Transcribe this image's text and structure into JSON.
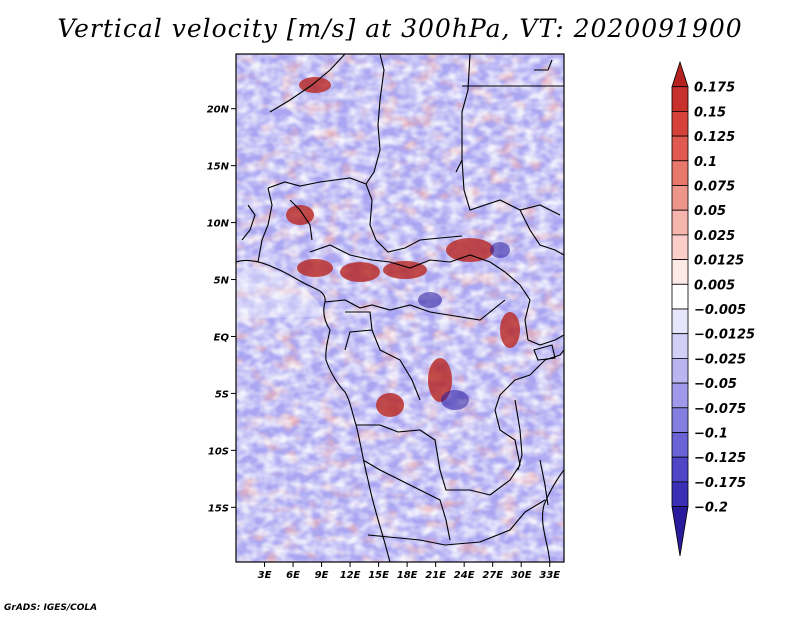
{
  "title": "Vertical velocity [m/s] at 300hPa, VT: 2020091900",
  "credit": "GrADS: IGES/COLA",
  "map": {
    "lat_labels": [
      "20N",
      "15N",
      "10N",
      "5N",
      "EQ",
      "5S",
      "10S",
      "15S"
    ],
    "lat_values": [
      20,
      15,
      10,
      5,
      0,
      -5,
      -10,
      -15
    ],
    "lon_labels": [
      "3E",
      "6E",
      "9E",
      "12E",
      "15E",
      "18E",
      "21E",
      "24E",
      "27E",
      "30E",
      "33E"
    ],
    "lon_values": [
      3,
      6,
      9,
      12,
      15,
      18,
      21,
      24,
      27,
      30,
      33
    ],
    "lat_range": [
      -19.8,
      24.8
    ],
    "lon_range": [
      0,
      34.5
    ]
  },
  "colorbar": {
    "labels": [
      "0.175",
      "0.15",
      "0.125",
      "0.1",
      "0.075",
      "0.05",
      "0.025",
      "0.0125",
      "0.005",
      "-0.005",
      "-0.0125",
      "-0.025",
      "-0.05",
      "-0.075",
      "-0.1",
      "-0.125",
      "-0.175",
      "-0.2"
    ],
    "colors": [
      "#b4231f",
      "#c8302c",
      "#d6423a",
      "#e05a50",
      "#e8786c",
      "#ef968c",
      "#f5b4ac",
      "#facfca",
      "#fdeae7",
      "#ffffff",
      "#e7e5fb",
      "#d3cff6",
      "#bab4f0",
      "#a099ea",
      "#857ee1",
      "#6a63d6",
      "#4f47c8",
      "#3a2fb5",
      "#2a1a9c"
    ]
  }
}
